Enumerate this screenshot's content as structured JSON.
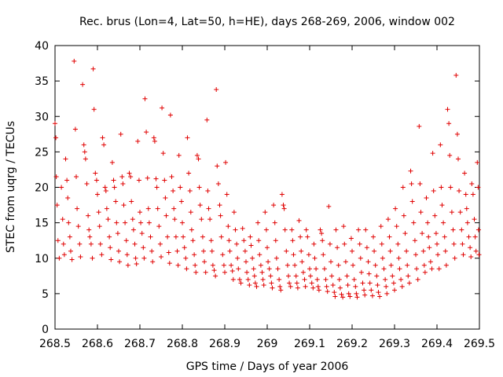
{
  "chart_data": {
    "type": "scatter",
    "title": "Rec. brus (Lon=4, Lat=50, h=HE), days 268-269, 2006, window 002",
    "xlabel": "GPS time / Days of year 2006",
    "ylabel": "STEC from uqrg / TECUs",
    "xlim": [
      268.5,
      269.5
    ],
    "ylim": [
      0,
      40
    ],
    "xticks": [
      268.5,
      268.6,
      268.7,
      268.8,
      268.9,
      269.0,
      269.1,
      269.2,
      269.3,
      269.4,
      269.5
    ],
    "xtick_labels": [
      "268.5",
      "268.6",
      "268.7",
      "268.8",
      "268.9",
      "269",
      "269.1",
      "269.2",
      "269.3",
      "269.4",
      "269.5"
    ],
    "yticks": [
      0,
      5,
      10,
      15,
      20,
      25,
      30,
      35,
      40
    ],
    "ytick_labels": [
      "0",
      "5",
      "10",
      "15",
      "20",
      "25",
      "30",
      "35",
      "40"
    ],
    "grid": false,
    "marker": "plus",
    "color": "#e00000",
    "points": [
      [
        268.5,
        29.0
      ],
      [
        268.502,
        27.0
      ],
      [
        268.503,
        21.5
      ],
      [
        268.505,
        17.5
      ],
      [
        268.507,
        12.5
      ],
      [
        268.51,
        10.0
      ],
      [
        268.515,
        20.0
      ],
      [
        268.518,
        15.5
      ],
      [
        268.52,
        12.0
      ],
      [
        268.522,
        10.5
      ],
      [
        268.525,
        24.0
      ],
      [
        268.528,
        21.0
      ],
      [
        268.53,
        18.5
      ],
      [
        268.532,
        15.0
      ],
      [
        268.535,
        13.0
      ],
      [
        268.537,
        11.0
      ],
      [
        268.54,
        9.8
      ],
      [
        268.545,
        37.8
      ],
      [
        268.548,
        28.2
      ],
      [
        268.55,
        21.5
      ],
      [
        268.552,
        17.0
      ],
      [
        268.555,
        14.5
      ],
      [
        268.558,
        12.0
      ],
      [
        268.56,
        10.2
      ],
      [
        268.565,
        34.5
      ],
      [
        268.568,
        26.0
      ],
      [
        268.57,
        25.0
      ],
      [
        268.572,
        24.0
      ],
      [
        268.575,
        20.5
      ],
      [
        268.578,
        16.0
      ],
      [
        268.58,
        14.0
      ],
      [
        268.582,
        13.0
      ],
      [
        268.585,
        12.0
      ],
      [
        268.588,
        10.0
      ],
      [
        268.59,
        36.7
      ],
      [
        268.592,
        31.0
      ],
      [
        268.595,
        22.0
      ],
      [
        268.598,
        21.0
      ],
      [
        268.6,
        19.0
      ],
      [
        268.603,
        16.5
      ],
      [
        268.605,
        14.5
      ],
      [
        268.607,
        12.0
      ],
      [
        268.61,
        10.5
      ],
      [
        268.612,
        27.0
      ],
      [
        268.615,
        26.0
      ],
      [
        268.618,
        20.0
      ],
      [
        268.62,
        19.5
      ],
      [
        268.622,
        17.0
      ],
      [
        268.625,
        15.5
      ],
      [
        268.628,
        13.0
      ],
      [
        268.63,
        11.5
      ],
      [
        268.632,
        9.8
      ],
      [
        268.635,
        23.5
      ],
      [
        268.638,
        21.0
      ],
      [
        268.64,
        20.0
      ],
      [
        268.643,
        18.0
      ],
      [
        268.645,
        15.0
      ],
      [
        268.648,
        13.5
      ],
      [
        268.65,
        11.0
      ],
      [
        268.652,
        9.5
      ],
      [
        268.655,
        27.5
      ],
      [
        268.658,
        21.5
      ],
      [
        268.66,
        20.5
      ],
      [
        268.662,
        17.5
      ],
      [
        268.665,
        15.0
      ],
      [
        268.668,
        12.5
      ],
      [
        268.67,
        10.5
      ],
      [
        268.672,
        9.0
      ],
      [
        268.675,
        22.0
      ],
      [
        268.678,
        21.5
      ],
      [
        268.68,
        18.0
      ],
      [
        268.683,
        15.5
      ],
      [
        268.685,
        14.0
      ],
      [
        268.688,
        12.0
      ],
      [
        268.69,
        10.0
      ],
      [
        268.692,
        9.2
      ],
      [
        268.695,
        26.5
      ],
      [
        268.698,
        21.0
      ],
      [
        268.7,
        16.5
      ],
      [
        268.702,
        15.0
      ],
      [
        268.705,
        13.5
      ],
      [
        268.708,
        11.5
      ],
      [
        268.71,
        10.0
      ],
      [
        268.712,
        32.5
      ],
      [
        268.715,
        27.8
      ],
      [
        268.718,
        21.3
      ],
      [
        268.72,
        17.0
      ],
      [
        268.722,
        15.0
      ],
      [
        268.725,
        13.0
      ],
      [
        268.728,
        11.0
      ],
      [
        268.73,
        9.5
      ],
      [
        268.733,
        27.0
      ],
      [
        268.735,
        26.5
      ],
      [
        268.738,
        21.2
      ],
      [
        268.74,
        20.0
      ],
      [
        268.742,
        17.0
      ],
      [
        268.745,
        14.5
      ],
      [
        268.748,
        12.0
      ],
      [
        268.75,
        10.2
      ],
      [
        268.752,
        31.2
      ],
      [
        268.755,
        24.8
      ],
      [
        268.758,
        21.0
      ],
      [
        268.76,
        18.5
      ],
      [
        268.762,
        16.0
      ],
      [
        268.765,
        13.0
      ],
      [
        268.768,
        10.8
      ],
      [
        268.77,
        9.3
      ],
      [
        268.772,
        30.2
      ],
      [
        268.775,
        21.5
      ],
      [
        268.778,
        19.5
      ],
      [
        268.78,
        17.0
      ],
      [
        268.782,
        15.5
      ],
      [
        268.785,
        13.0
      ],
      [
        268.788,
        11.0
      ],
      [
        268.79,
        9.0
      ],
      [
        268.792,
        24.5
      ],
      [
        268.795,
        20.0
      ],
      [
        268.798,
        18.0
      ],
      [
        268.8,
        15.0
      ],
      [
        268.802,
        13.0
      ],
      [
        268.805,
        11.5
      ],
      [
        268.808,
        10.0
      ],
      [
        268.81,
        8.5
      ],
      [
        268.812,
        27.0
      ],
      [
        268.815,
        22.0
      ],
      [
        268.818,
        19.5
      ],
      [
        268.82,
        16.5
      ],
      [
        268.822,
        14.0
      ],
      [
        268.825,
        12.5
      ],
      [
        268.828,
        10.5
      ],
      [
        268.83,
        9.0
      ],
      [
        268.832,
        8.0
      ],
      [
        268.835,
        24.5
      ],
      [
        268.838,
        24.0
      ],
      [
        268.84,
        20.0
      ],
      [
        268.842,
        17.5
      ],
      [
        268.845,
        15.5
      ],
      [
        268.848,
        13.0
      ],
      [
        268.85,
        11.0
      ],
      [
        268.852,
        9.5
      ],
      [
        268.855,
        8.0
      ],
      [
        268.858,
        29.5
      ],
      [
        268.86,
        19.5
      ],
      [
        268.862,
        17.0
      ],
      [
        268.865,
        15.5
      ],
      [
        268.868,
        12.5
      ],
      [
        268.87,
        11.0
      ],
      [
        268.872,
        9.0
      ],
      [
        268.875,
        8.3
      ],
      [
        268.878,
        7.5
      ],
      [
        268.88,
        33.8
      ],
      [
        268.882,
        23.0
      ],
      [
        268.885,
        20.5
      ],
      [
        268.888,
        17.5
      ],
      [
        268.89,
        16.0
      ],
      [
        268.892,
        13.0
      ],
      [
        268.895,
        10.5
      ],
      [
        268.898,
        9.0
      ],
      [
        268.9,
        8.0
      ],
      [
        268.902,
        23.5
      ],
      [
        268.905,
        19.0
      ],
      [
        268.908,
        14.5
      ],
      [
        268.91,
        12.5
      ],
      [
        268.912,
        11.0
      ],
      [
        268.915,
        9.0
      ],
      [
        268.918,
        8.2
      ],
      [
        268.92,
        7.0
      ],
      [
        268.922,
        16.5
      ],
      [
        268.925,
        14.0
      ],
      [
        268.928,
        12.0
      ],
      [
        268.93,
        10.0
      ],
      [
        268.932,
        8.5
      ],
      [
        268.935,
        7.0
      ],
      [
        268.938,
        6.5
      ],
      [
        268.942,
        14.2
      ],
      [
        268.945,
        12.5
      ],
      [
        268.948,
        11.0
      ],
      [
        268.95,
        9.5
      ],
      [
        268.952,
        8.0
      ],
      [
        268.955,
        7.0
      ],
      [
        268.958,
        6.2
      ],
      [
        268.96,
        13.0
      ],
      [
        268.962,
        11.8
      ],
      [
        268.965,
        10.0
      ],
      [
        268.968,
        8.5
      ],
      [
        268.97,
        7.5
      ],
      [
        268.972,
        6.5
      ],
      [
        268.975,
        6.0
      ],
      [
        268.978,
        15.0
      ],
      [
        268.98,
        12.5
      ],
      [
        268.982,
        10.5
      ],
      [
        268.985,
        9.0
      ],
      [
        268.988,
        8.0
      ],
      [
        268.99,
        7.0
      ],
      [
        268.992,
        6.2
      ],
      [
        268.995,
        16.5
      ],
      [
        268.998,
        14.0
      ],
      [
        269.0,
        11.5
      ],
      [
        269.002,
        9.5
      ],
      [
        269.005,
        8.5
      ],
      [
        269.008,
        7.5
      ],
      [
        269.01,
        6.5
      ],
      [
        269.012,
        5.8
      ],
      [
        269.015,
        17.5
      ],
      [
        269.018,
        15.0
      ],
      [
        269.02,
        12.5
      ],
      [
        269.022,
        10.0
      ],
      [
        269.025,
        8.5
      ],
      [
        269.028,
        7.0
      ],
      [
        269.03,
        6.0
      ],
      [
        269.032,
        5.5
      ],
      [
        269.035,
        19.0
      ],
      [
        269.038,
        17.5
      ],
      [
        269.04,
        17.0
      ],
      [
        269.042,
        14.0
      ],
      [
        269.045,
        11.0
      ],
      [
        269.048,
        9.0
      ],
      [
        269.05,
        7.5
      ],
      [
        269.052,
        6.5
      ],
      [
        269.055,
        6.0
      ],
      [
        269.058,
        14.0
      ],
      [
        269.06,
        12.5
      ],
      [
        269.062,
        10.5
      ],
      [
        269.065,
        9.0
      ],
      [
        269.068,
        7.5
      ],
      [
        269.07,
        6.5
      ],
      [
        269.072,
        5.8
      ],
      [
        269.075,
        15.3
      ],
      [
        269.078,
        13.0
      ],
      [
        269.08,
        11.0
      ],
      [
        269.082,
        9.5
      ],
      [
        269.085,
        8.0
      ],
      [
        269.088,
        7.0
      ],
      [
        269.09,
        6.0
      ],
      [
        269.092,
        14.0
      ],
      [
        269.095,
        13.0
      ],
      [
        269.098,
        10.5
      ],
      [
        269.1,
        8.5
      ],
      [
        269.102,
        7.5
      ],
      [
        269.105,
        6.5
      ],
      [
        269.108,
        5.8
      ],
      [
        269.11,
        12.0
      ],
      [
        269.112,
        10.0
      ],
      [
        269.115,
        8.5
      ],
      [
        269.118,
        7.0
      ],
      [
        269.12,
        6.0
      ],
      [
        269.122,
        5.5
      ],
      [
        269.125,
        14.0
      ],
      [
        269.128,
        13.5
      ],
      [
        269.13,
        12.5
      ],
      [
        269.132,
        10.5
      ],
      [
        269.135,
        8.5
      ],
      [
        269.138,
        7.0
      ],
      [
        269.14,
        6.0
      ],
      [
        269.142,
        5.3
      ],
      [
        269.145,
        17.3
      ],
      [
        269.148,
        12.0
      ],
      [
        269.15,
        9.5
      ],
      [
        269.152,
        7.5
      ],
      [
        269.155,
        6.2
      ],
      [
        269.158,
        5.2
      ],
      [
        269.16,
        4.6
      ],
      [
        269.162,
        14.0
      ],
      [
        269.165,
        11.5
      ],
      [
        269.168,
        9.0
      ],
      [
        269.17,
        7.0
      ],
      [
        269.172,
        5.8
      ],
      [
        269.175,
        4.9
      ],
      [
        269.178,
        4.5
      ],
      [
        269.18,
        14.5
      ],
      [
        269.182,
        12.0
      ],
      [
        269.185,
        9.5
      ],
      [
        269.188,
        7.5
      ],
      [
        269.19,
        6.2
      ],
      [
        269.192,
        5.0
      ],
      [
        269.195,
        4.6
      ],
      [
        269.198,
        12.8
      ],
      [
        269.2,
        11.0
      ],
      [
        269.202,
        9.0
      ],
      [
        269.205,
        7.0
      ],
      [
        269.208,
        6.0
      ],
      [
        269.21,
        5.0
      ],
      [
        269.212,
        4.5
      ],
      [
        269.215,
        14.0
      ],
      [
        269.218,
        12.0
      ],
      [
        269.22,
        10.0
      ],
      [
        269.222,
        8.0
      ],
      [
        269.225,
        6.5
      ],
      [
        269.228,
        5.5
      ],
      [
        269.23,
        4.8
      ],
      [
        269.232,
        14.0
      ],
      [
        269.235,
        11.5
      ],
      [
        269.238,
        9.5
      ],
      [
        269.24,
        7.8
      ],
      [
        269.242,
        6.5
      ],
      [
        269.245,
        5.5
      ],
      [
        269.248,
        4.7
      ],
      [
        269.25,
        13.0
      ],
      [
        269.252,
        11.0
      ],
      [
        269.255,
        9.0
      ],
      [
        269.258,
        7.5
      ],
      [
        269.26,
        6.2
      ],
      [
        269.262,
        5.2
      ],
      [
        269.265,
        4.6
      ],
      [
        269.268,
        14.5
      ],
      [
        269.27,
        12.0
      ],
      [
        269.272,
        10.0
      ],
      [
        269.275,
        8.5
      ],
      [
        269.278,
        7.0
      ],
      [
        269.28,
        6.0
      ],
      [
        269.282,
        5.0
      ],
      [
        269.285,
        15.5
      ],
      [
        269.288,
        13.0
      ],
      [
        269.29,
        11.0
      ],
      [
        269.292,
        9.0
      ],
      [
        269.295,
        7.5
      ],
      [
        269.298,
        6.5
      ],
      [
        269.3,
        5.5
      ],
      [
        269.302,
        17.0
      ],
      [
        269.305,
        14.5
      ],
      [
        269.308,
        12.0
      ],
      [
        269.31,
        10.0
      ],
      [
        269.312,
        8.5
      ],
      [
        269.315,
        7.0
      ],
      [
        269.318,
        6.0
      ],
      [
        269.32,
        20.0
      ],
      [
        269.322,
        16.0
      ],
      [
        269.325,
        13.5
      ],
      [
        269.328,
        11.0
      ],
      [
        269.33,
        9.0
      ],
      [
        269.332,
        7.5
      ],
      [
        269.335,
        6.5
      ],
      [
        269.338,
        22.3
      ],
      [
        269.34,
        20.5
      ],
      [
        269.342,
        18.0
      ],
      [
        269.345,
        15.0
      ],
      [
        269.348,
        12.5
      ],
      [
        269.35,
        10.5
      ],
      [
        269.352,
        8.5
      ],
      [
        269.355,
        7.0
      ],
      [
        269.358,
        28.6
      ],
      [
        269.36,
        20.5
      ],
      [
        269.362,
        16.5
      ],
      [
        269.365,
        13.5
      ],
      [
        269.368,
        11.0
      ],
      [
        269.37,
        9.0
      ],
      [
        269.372,
        8.0
      ],
      [
        269.375,
        18.5
      ],
      [
        269.378,
        15.0
      ],
      [
        269.38,
        13.0
      ],
      [
        269.382,
        11.5
      ],
      [
        269.385,
        9.5
      ],
      [
        269.388,
        8.5
      ],
      [
        269.39,
        24.8
      ],
      [
        269.392,
        19.5
      ],
      [
        269.395,
        16.0
      ],
      [
        269.398,
        13.5
      ],
      [
        269.4,
        12.0
      ],
      [
        269.402,
        10.5
      ],
      [
        269.405,
        8.5
      ],
      [
        269.408,
        26.0
      ],
      [
        269.41,
        20.0
      ],
      [
        269.412,
        17.5
      ],
      [
        269.415,
        15.0
      ],
      [
        269.418,
        13.0
      ],
      [
        269.42,
        11.0
      ],
      [
        269.422,
        9.0
      ],
      [
        269.425,
        31.0
      ],
      [
        269.428,
        29.0
      ],
      [
        269.43,
        24.5
      ],
      [
        269.432,
        20.0
      ],
      [
        269.435,
        16.5
      ],
      [
        269.438,
        14.0
      ],
      [
        269.44,
        12.0
      ],
      [
        269.442,
        10.0
      ],
      [
        269.445,
        35.8
      ],
      [
        269.448,
        27.5
      ],
      [
        269.45,
        24.0
      ],
      [
        269.452,
        19.5
      ],
      [
        269.455,
        16.5
      ],
      [
        269.458,
        14.0
      ],
      [
        269.46,
        12.0
      ],
      [
        269.462,
        10.5
      ],
      [
        269.465,
        22.0
      ],
      [
        269.468,
        19.0
      ],
      [
        269.47,
        17.0
      ],
      [
        269.472,
        15.0
      ],
      [
        269.475,
        13.0
      ],
      [
        269.478,
        11.5
      ],
      [
        269.48,
        10.2
      ],
      [
        269.482,
        20.5
      ],
      [
        269.485,
        19.0
      ],
      [
        269.488,
        15.5
      ],
      [
        269.49,
        13.0
      ],
      [
        269.492,
        11.0
      ],
      [
        269.495,
        23.5
      ],
      [
        269.497,
        20.0
      ],
      [
        269.498,
        14.0
      ],
      [
        269.499,
        10.5
      ]
    ]
  }
}
